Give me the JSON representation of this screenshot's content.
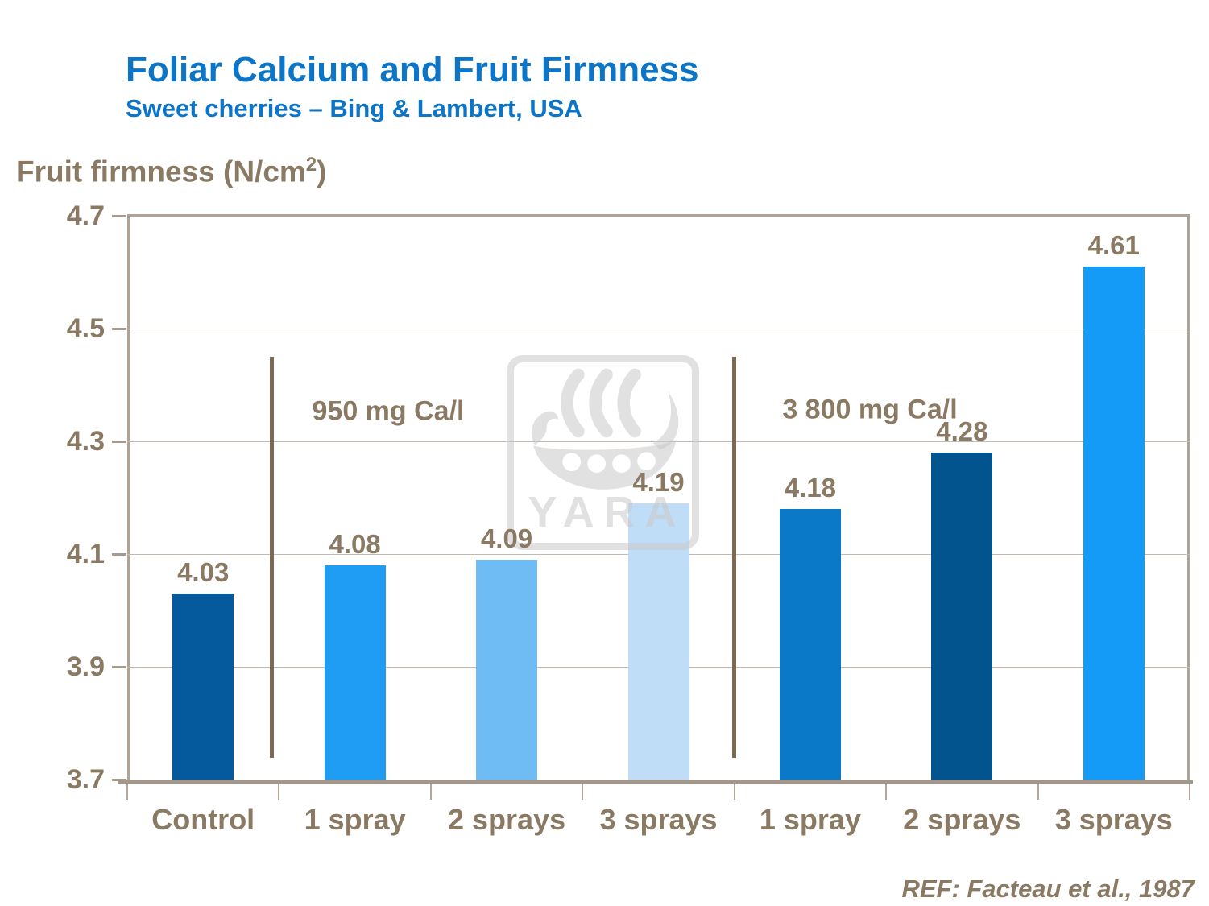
{
  "slide": {
    "title": "Foliar Calcium and Fruit Firmness",
    "subtitle": "Sweet cherries – Bing & Lambert, USA",
    "reference": "REF: Facteau et al., 1987"
  },
  "y_axis_title": {
    "prefix": "Fruit firmness (N/cm",
    "sup": "2",
    "suffix": ")"
  },
  "watermark": {
    "icon": "viking-ship-icon",
    "text": "YARA"
  },
  "colors": {
    "title_blue": "#0c75c7",
    "taupe_text": "#8a7963",
    "gridline": "#c6bab0",
    "frame_border": "#b0a396",
    "x_axis": "#a3968a",
    "group_divider": "#7a6a51",
    "watermark_gray": "#e0e0e0"
  },
  "chart_data": {
    "type": "bar",
    "title": "Foliar Calcium and Fruit Firmness",
    "subtitle": "Sweet cherries – Bing & Lambert, USA",
    "ylabel": "Fruit firmness (N/cm2)",
    "xlabel": "",
    "ylim": [
      3.7,
      4.7
    ],
    "yticks": [
      "4.7",
      "4.5",
      "4.3",
      "4.1",
      "3.9",
      "3.7"
    ],
    "gridlines": [
      4.5,
      4.3,
      4.1,
      3.9
    ],
    "grid": "horizontal only",
    "legend": "none",
    "categories": [
      "Control",
      "1 spray",
      "2 sprays",
      "3 sprays",
      "1 spray",
      "2 sprays",
      "3 sprays"
    ],
    "values": [
      4.03,
      4.08,
      4.09,
      4.19,
      4.18,
      4.28,
      4.61
    ],
    "value_labels": [
      "4.03",
      "4.08",
      "4.09",
      "4.19",
      "4.18",
      "4.28",
      "4.61"
    ],
    "bar_colors": [
      "#05599d",
      "#1f9cf4",
      "#6fbbf4",
      "#c0ddf8",
      "#0979c8",
      "#02548f",
      "#149bf8"
    ],
    "groups": [
      {
        "label": "950 mg Ca/l",
        "bars": [
          "1 spray",
          "2 sprays",
          "3 sprays"
        ]
      },
      {
        "label": "3 800 mg Ca/l",
        "bars": [
          "1 spray",
          "2 sprays",
          "3 sprays"
        ]
      }
    ],
    "annotation": "REF: Facteau et al., 1987"
  }
}
